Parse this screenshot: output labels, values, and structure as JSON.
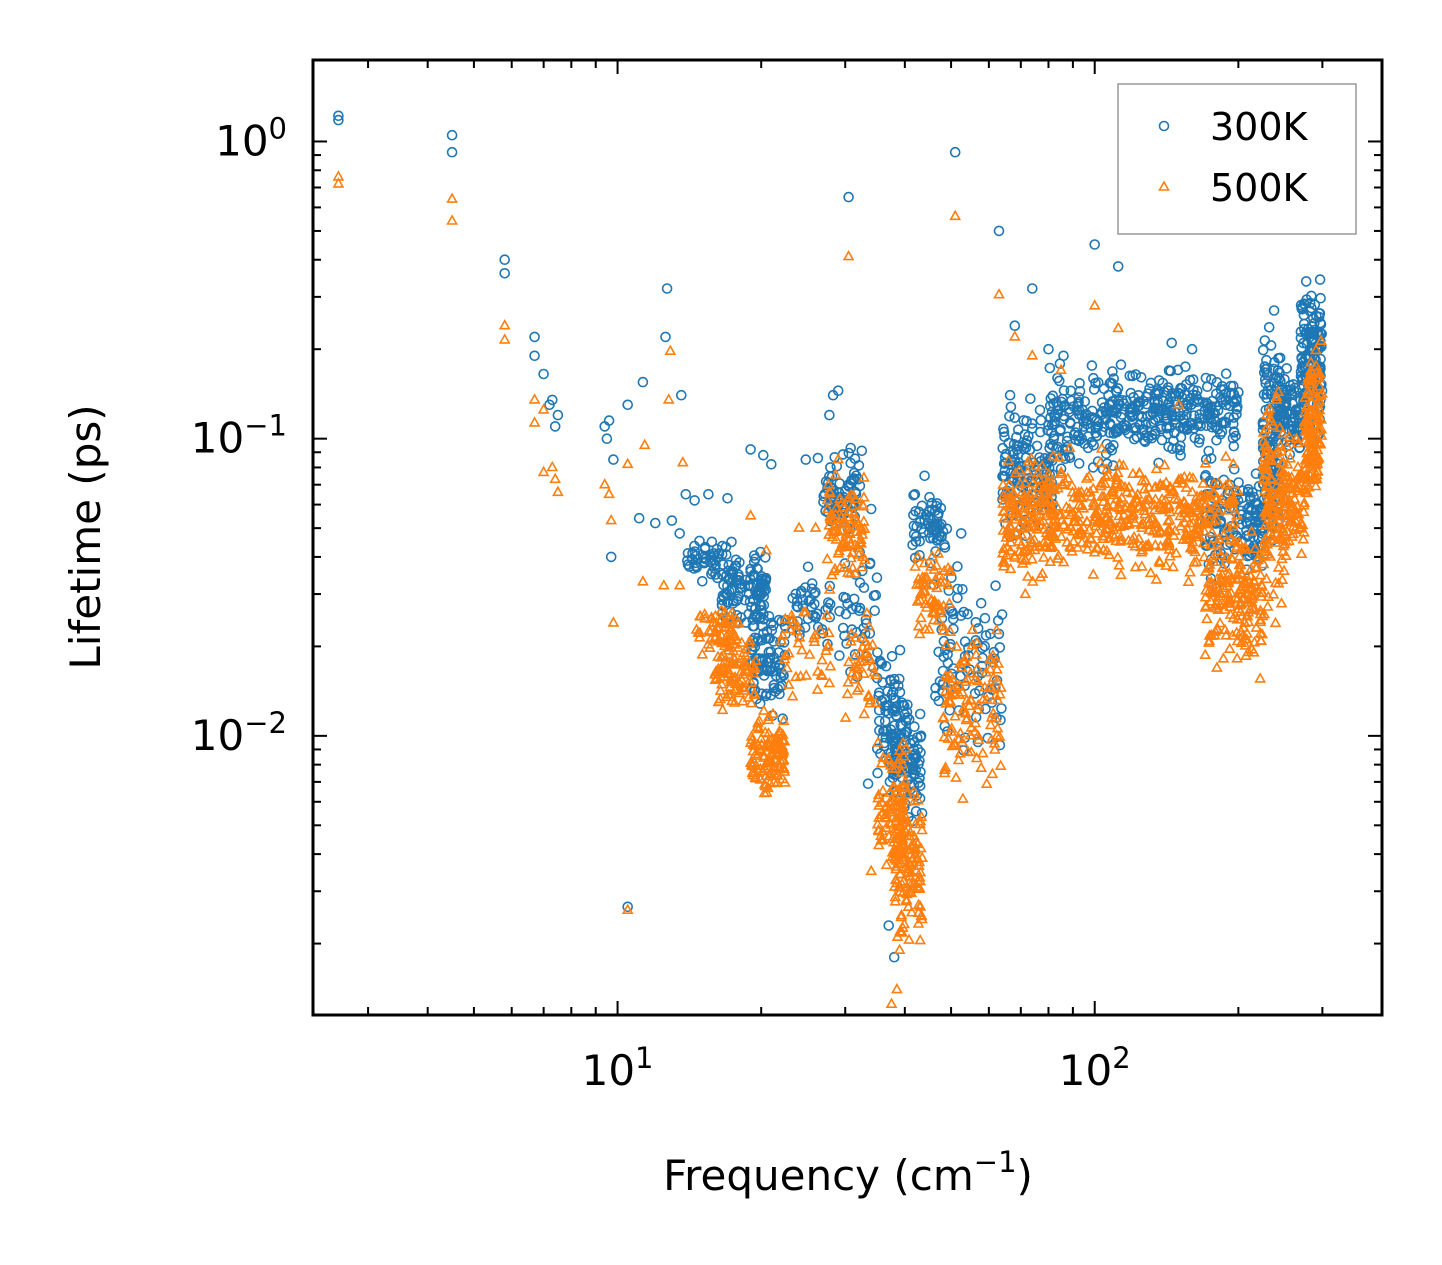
{
  "chart_data": {
    "type": "scatter",
    "title": "",
    "xlabel": "Frequency (cm",
    "xlabel_sup": "−1",
    "xlabel_close": ")",
    "ylabel": "Lifetime (ps)",
    "xscale": "log",
    "yscale": "log",
    "xlim": [
      2.3,
      400
    ],
    "ylim": [
      0.00115,
      1.88
    ],
    "x_ticks": [
      {
        "value": 10,
        "base": "10",
        "exp": "1"
      },
      {
        "value": 100,
        "base": "10",
        "exp": "2"
      }
    ],
    "y_ticks": [
      {
        "value": 1,
        "base": "10",
        "exp": "0"
      },
      {
        "value": 0.1,
        "base": "10",
        "exp": "−1"
      },
      {
        "value": 0.01,
        "base": "10",
        "exp": "−2"
      }
    ],
    "legend_position": "top-right",
    "series": [
      {
        "name": "300K",
        "marker": "circle",
        "color": "#1f77b4",
        "points": [
          [
            2.6,
            1.22
          ],
          [
            2.6,
            1.18
          ],
          [
            4.5,
            1.05
          ],
          [
            4.5,
            0.92
          ],
          [
            5.8,
            0.4
          ],
          [
            5.8,
            0.36
          ],
          [
            6.7,
            0.22
          ],
          [
            6.7,
            0.19
          ],
          [
            7.0,
            0.165
          ],
          [
            7.2,
            0.13
          ],
          [
            7.3,
            0.135
          ],
          [
            7.5,
            0.12
          ],
          [
            7.4,
            0.11
          ],
          [
            9.4,
            0.11
          ],
          [
            9.6,
            0.115
          ],
          [
            9.5,
            0.1
          ],
          [
            9.8,
            0.085
          ],
          [
            9.7,
            0.04
          ],
          [
            10.5,
            0.13
          ],
          [
            10.5,
            0.00266
          ],
          [
            11.1,
            0.054
          ],
          [
            11.3,
            0.155
          ],
          [
            12.0,
            0.052
          ],
          [
            12.6,
            0.22
          ],
          [
            12.7,
            0.32
          ],
          [
            13.0,
            0.053
          ],
          [
            13.6,
            0.14
          ],
          [
            13.5,
            0.048
          ],
          [
            13.9,
            0.065
          ],
          [
            14.5,
            0.062
          ],
          [
            15.5,
            0.065
          ],
          [
            17.0,
            0.063
          ],
          [
            19.0,
            0.092
          ],
          [
            20.2,
            0.088
          ],
          [
            21.0,
            0.082
          ],
          [
            24.8,
            0.085
          ],
          [
            26.3,
            0.086
          ],
          [
            27.8,
            0.12
          ],
          [
            28.3,
            0.14
          ],
          [
            29.0,
            0.145
          ],
          [
            30.5,
            0.65
          ],
          [
            30.8,
            0.093
          ],
          [
            32.5,
            0.091
          ],
          [
            34.0,
            0.058
          ],
          [
            33.5,
            0.0069
          ],
          [
            37.0,
            0.0023
          ],
          [
            38.0,
            0.0018
          ],
          [
            42.0,
            0.065
          ],
          [
            44.0,
            0.075
          ],
          [
            51.0,
            0.92
          ],
          [
            52.5,
            0.048
          ],
          [
            57.0,
            0.023
          ],
          [
            63.0,
            0.5
          ],
          [
            68.0,
            0.24
          ],
          [
            74.0,
            0.32
          ],
          [
            80.0,
            0.2
          ],
          [
            86.0,
            0.19
          ],
          [
            100.0,
            0.45
          ],
          [
            112.0,
            0.38
          ],
          [
            145.0,
            0.21
          ],
          [
            160.0,
            0.2
          ],
          [
            171.0,
            0.16
          ],
          [
            185.0,
            0.15
          ]
        ],
        "clusters": [
          {
            "x": [
              14.0,
              17.0
            ],
            "y": [
              0.03,
              0.052
            ],
            "n": 45
          },
          {
            "x": [
              16.5,
              20.5
            ],
            "y": [
              0.02,
              0.05
            ],
            "n": 110
          },
          {
            "x": [
              19.0,
              22.5
            ],
            "y": [
              0.0105,
              0.03
            ],
            "n": 90
          },
          {
            "x": [
              23.0,
              28.0
            ],
            "y": [
              0.018,
              0.04
            ],
            "n": 40
          },
          {
            "x": [
              27.0,
              32.5
            ],
            "y": [
              0.045,
              0.098
            ],
            "n": 70
          },
          {
            "x": [
              29.0,
              35.0
            ],
            "y": [
              0.013,
              0.05
            ],
            "n": 40
          },
          {
            "x": [
              35.0,
              40.5
            ],
            "y": [
              0.0055,
              0.024
            ],
            "n": 90
          },
          {
            "x": [
              38.0,
              43.5
            ],
            "y": [
              0.0045,
              0.014
            ],
            "n": 80
          },
          {
            "x": [
              41.5,
              49.0
            ],
            "y": [
              0.035,
              0.075
            ],
            "n": 60
          },
          {
            "x": [
              46.0,
              64.0
            ],
            "y": [
              0.0072,
              0.045
            ],
            "n": 90
          },
          {
            "x": [
              64.0,
              82.0
            ],
            "y": [
              0.04,
              0.16
            ],
            "n": 150
          },
          {
            "x": [
              80.0,
              110.0
            ],
            "y": [
              0.07,
              0.2
            ],
            "n": 140
          },
          {
            "x": [
              110.0,
              200.0
            ],
            "y": [
              0.08,
              0.19
            ],
            "n": 260
          },
          {
            "x": [
              170.0,
              200.0
            ],
            "y": [
              0.028,
              0.1
            ],
            "n": 70
          },
          {
            "x": [
              200.0,
              225.0
            ],
            "y": [
              0.03,
              0.09
            ],
            "n": 70
          },
          {
            "x": [
              225.0,
              245.0
            ],
            "y": [
              0.035,
              0.33
            ],
            "n": 130
          },
          {
            "x": [
              245.0,
              270.0
            ],
            "y": [
              0.08,
              0.18
            ],
            "n": 70
          },
          {
            "x": [
              270.0,
              300.0
            ],
            "y": [
              0.09,
              0.4
            ],
            "n": 140
          }
        ]
      },
      {
        "name": "500K",
        "marker": "triangle",
        "color": "#ff7f0e",
        "points": [
          [
            2.6,
            0.76
          ],
          [
            2.6,
            0.72
          ],
          [
            4.5,
            0.64
          ],
          [
            4.5,
            0.54
          ],
          [
            5.8,
            0.24
          ],
          [
            5.8,
            0.215
          ],
          [
            6.7,
            0.135
          ],
          [
            6.7,
            0.113
          ],
          [
            7.0,
            0.125
          ],
          [
            7.0,
            0.077
          ],
          [
            7.3,
            0.08
          ],
          [
            7.4,
            0.073
          ],
          [
            7.5,
            0.066
          ],
          [
            9.4,
            0.07
          ],
          [
            9.6,
            0.065
          ],
          [
            9.7,
            0.053
          ],
          [
            9.8,
            0.024
          ],
          [
            10.5,
            0.082
          ],
          [
            10.5,
            0.00259
          ],
          [
            11.4,
            0.095
          ],
          [
            11.3,
            0.033
          ],
          [
            12.5,
            0.032
          ],
          [
            12.8,
            0.135
          ],
          [
            12.9,
            0.197
          ],
          [
            13.7,
            0.083
          ],
          [
            13.5,
            0.032
          ],
          [
            19.0,
            0.055
          ],
          [
            20.5,
            0.042
          ],
          [
            24.0,
            0.05
          ],
          [
            26.0,
            0.05
          ],
          [
            27.8,
            0.015
          ],
          [
            29.0,
            0.085
          ],
          [
            30.5,
            0.41
          ],
          [
            33.0,
            0.039
          ],
          [
            34.0,
            0.0035
          ],
          [
            37.5,
            0.00125
          ],
          [
            38.5,
            0.0014
          ],
          [
            44.0,
            0.038
          ],
          [
            51.0,
            0.56
          ],
          [
            63.0,
            0.305
          ],
          [
            68.0,
            0.22
          ],
          [
            74.0,
            0.19
          ],
          [
            85.0,
            0.17
          ],
          [
            100.0,
            0.28
          ],
          [
            112.0,
            0.235
          ],
          [
            150.0,
            0.13
          ]
        ],
        "clusters": [
          {
            "x": [
              14.5,
              18.0
            ],
            "y": [
              0.017,
              0.03
            ],
            "n": 60
          },
          {
            "x": [
              16.0,
              19.5
            ],
            "y": [
              0.011,
              0.025
            ],
            "n": 90
          },
          {
            "x": [
              19.0,
              22.5
            ],
            "y": [
              0.0058,
              0.013
            ],
            "n": 120
          },
          {
            "x": [
              22.0,
              28.0
            ],
            "y": [
              0.011,
              0.035
            ],
            "n": 40
          },
          {
            "x": [
              27.5,
              33.0
            ],
            "y": [
              0.028,
              0.09
            ],
            "n": 90
          },
          {
            "x": [
              30.0,
              35.0
            ],
            "y": [
              0.01,
              0.03
            ],
            "n": 40
          },
          {
            "x": [
              35.0,
              40.5
            ],
            "y": [
              0.0028,
              0.012
            ],
            "n": 100
          },
          {
            "x": [
              38.0,
              43.5
            ],
            "y": [
              0.0015,
              0.0085
            ],
            "n": 120
          },
          {
            "x": [
              42.0,
              50.0
            ],
            "y": [
              0.02,
              0.045
            ],
            "n": 60
          },
          {
            "x": [
              48.0,
              64.0
            ],
            "y": [
              0.005,
              0.028
            ],
            "n": 110
          },
          {
            "x": [
              64.0,
              82.0
            ],
            "y": [
              0.028,
              0.1
            ],
            "n": 160
          },
          {
            "x": [
              80.0,
              110.0
            ],
            "y": [
              0.032,
              0.1
            ],
            "n": 150
          },
          {
            "x": [
              110.0,
              200.0
            ],
            "y": [
              0.03,
              0.1
            ],
            "n": 280
          },
          {
            "x": [
              170.0,
              200.0
            ],
            "y": [
              0.015,
              0.05
            ],
            "n": 80
          },
          {
            "x": [
              200.0,
              225.0
            ],
            "y": [
              0.014,
              0.06
            ],
            "n": 90
          },
          {
            "x": [
              225.0,
              250.0
            ],
            "y": [
              0.02,
              0.2
            ],
            "n": 130
          },
          {
            "x": [
              250.0,
              275.0
            ],
            "y": [
              0.03,
              0.12
            ],
            "n": 80
          },
          {
            "x": [
              275.0,
              300.0
            ],
            "y": [
              0.05,
              0.24
            ],
            "n": 140
          }
        ]
      }
    ]
  }
}
